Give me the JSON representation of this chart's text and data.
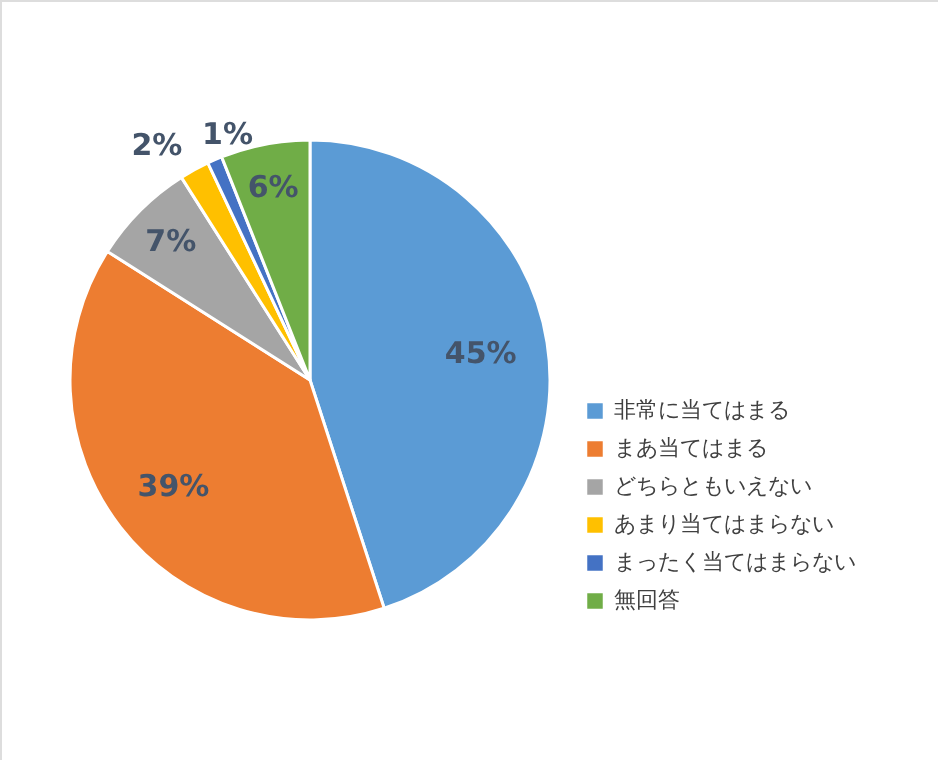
{
  "chart_data": {
    "type": "pie",
    "categories": [
      "非常に当てはまる",
      "まあ当てはまる",
      "どちらともいえない",
      "あまり当てはまらない",
      "まったく当てはまらない",
      "無回答"
    ],
    "values": [
      45,
      39,
      7,
      2,
      1,
      6
    ],
    "value_labels": [
      "45%",
      "39%",
      "7%",
      "2%",
      "1%",
      "6%"
    ],
    "colors": [
      "#5b9bd5",
      "#ed7d31",
      "#a5a5a5",
      "#ffc000",
      "#4472c4",
      "#70ad47"
    ],
    "legend": "right"
  }
}
